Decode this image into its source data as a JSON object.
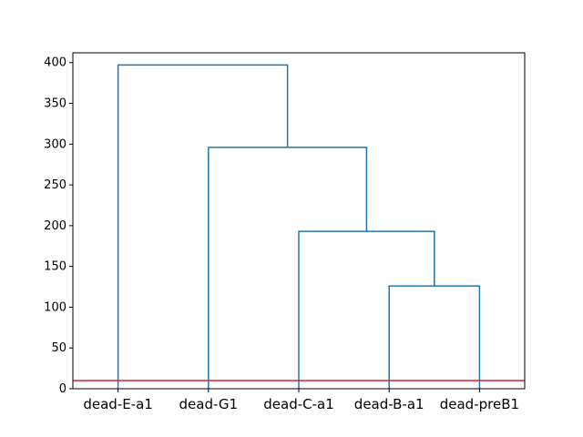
{
  "chart_data": {
    "type": "dendrogram",
    "leaves": [
      "dead-E-a1",
      "dead-G1",
      "dead-C-a1",
      "dead-B-a1",
      "dead-preB1"
    ],
    "merges": [
      {
        "left": "dead-B-a1",
        "right": "dead-preB1",
        "height": 126
      },
      {
        "left": "dead-C-a1",
        "right": "merge-1",
        "height": 193
      },
      {
        "left": "dead-G1",
        "right": "merge-2",
        "height": 296
      },
      {
        "left": "dead-E-a1",
        "right": "merge-3",
        "height": 397
      }
    ],
    "ylim": [
      0,
      412
    ],
    "yticks": [
      "0",
      "50",
      "100",
      "150",
      "200",
      "250",
      "300",
      "350",
      "400"
    ],
    "threshold": 10,
    "grid": false,
    "colors": {
      "links": "#1f77b4",
      "threshold": "#d62728",
      "axes": "#000000"
    }
  }
}
